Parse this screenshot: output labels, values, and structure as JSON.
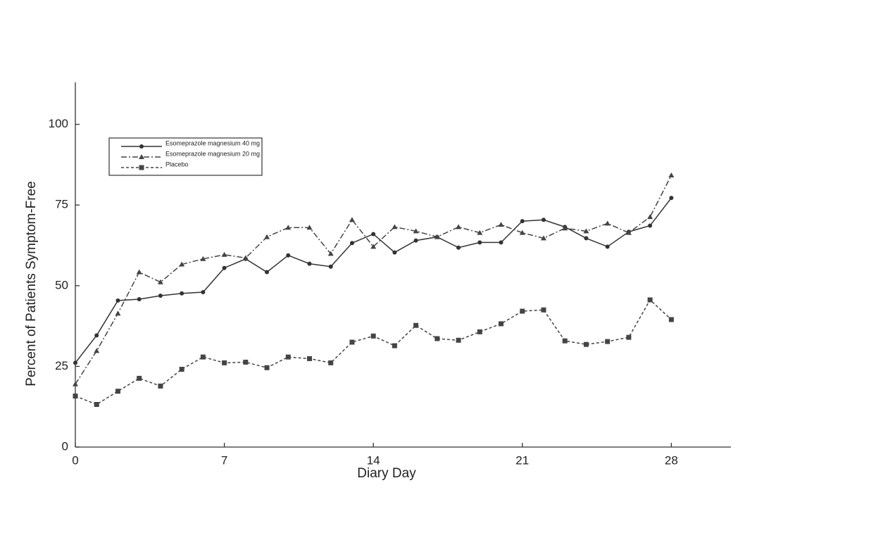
{
  "chart_data": {
    "type": "line",
    "x_label": "Diary Day",
    "y_label": "Percent of Patients Symptom-Free",
    "x": [
      0,
      1,
      2,
      3,
      4,
      5,
      6,
      7,
      8,
      9,
      10,
      11,
      12,
      13,
      14,
      15,
      16,
      17,
      18,
      19,
      20,
      21,
      22,
      23,
      24,
      25,
      26,
      27,
      28
    ],
    "xlim": [
      0,
      30.8
    ],
    "xticks": [
      0,
      7,
      14,
      21,
      28
    ],
    "ylim": [
      0,
      113
    ],
    "yticks": [
      0,
      25,
      50,
      75,
      100
    ],
    "grid": false,
    "legend": "upper-left",
    "series": [
      {
        "name": "Esomeprazole magnesium 40 mg",
        "color": "#333333",
        "linestyle": "solid",
        "marker": "circle",
        "values": [
          26.1,
          34.6,
          45.4,
          45.8,
          46.9,
          47.6,
          48.0,
          55.5,
          58.3,
          54.2,
          59.4,
          56.8,
          55.9,
          63.2,
          66.0,
          60.3,
          64.0,
          65.1,
          61.8,
          63.4,
          63.4,
          70.0,
          70.4,
          68.2,
          64.7,
          62.1,
          66.7,
          68.6,
          77.2
        ]
      },
      {
        "name": "Esomeprazole magnesium 20 mg",
        "color": "#444444",
        "linestyle": "dashdot",
        "marker": "triangle",
        "values": [
          19.5,
          29.8,
          41.4,
          54.2,
          51.1,
          56.6,
          58.3,
          59.6,
          58.6,
          65.1,
          68.0,
          68.0,
          59.9,
          70.4,
          62.1,
          68.2,
          66.9,
          65.1,
          68.2,
          66.4,
          68.9,
          66.4,
          64.7,
          67.8,
          66.9,
          69.3,
          66.4,
          71.3,
          84.2
        ]
      },
      {
        "name": "Placebo",
        "color": "#444444",
        "linestyle": "dotted",
        "marker": "square",
        "values": [
          15.8,
          13.2,
          17.3,
          21.3,
          18.9,
          24.1,
          27.9,
          26.1,
          26.3,
          24.6,
          27.9,
          27.4,
          26.1,
          32.5,
          34.4,
          31.4,
          37.7,
          33.6,
          33.1,
          35.7,
          38.2,
          42.1,
          42.5,
          32.9,
          31.8,
          32.7,
          34.0,
          45.6,
          39.5
        ]
      }
    ]
  }
}
